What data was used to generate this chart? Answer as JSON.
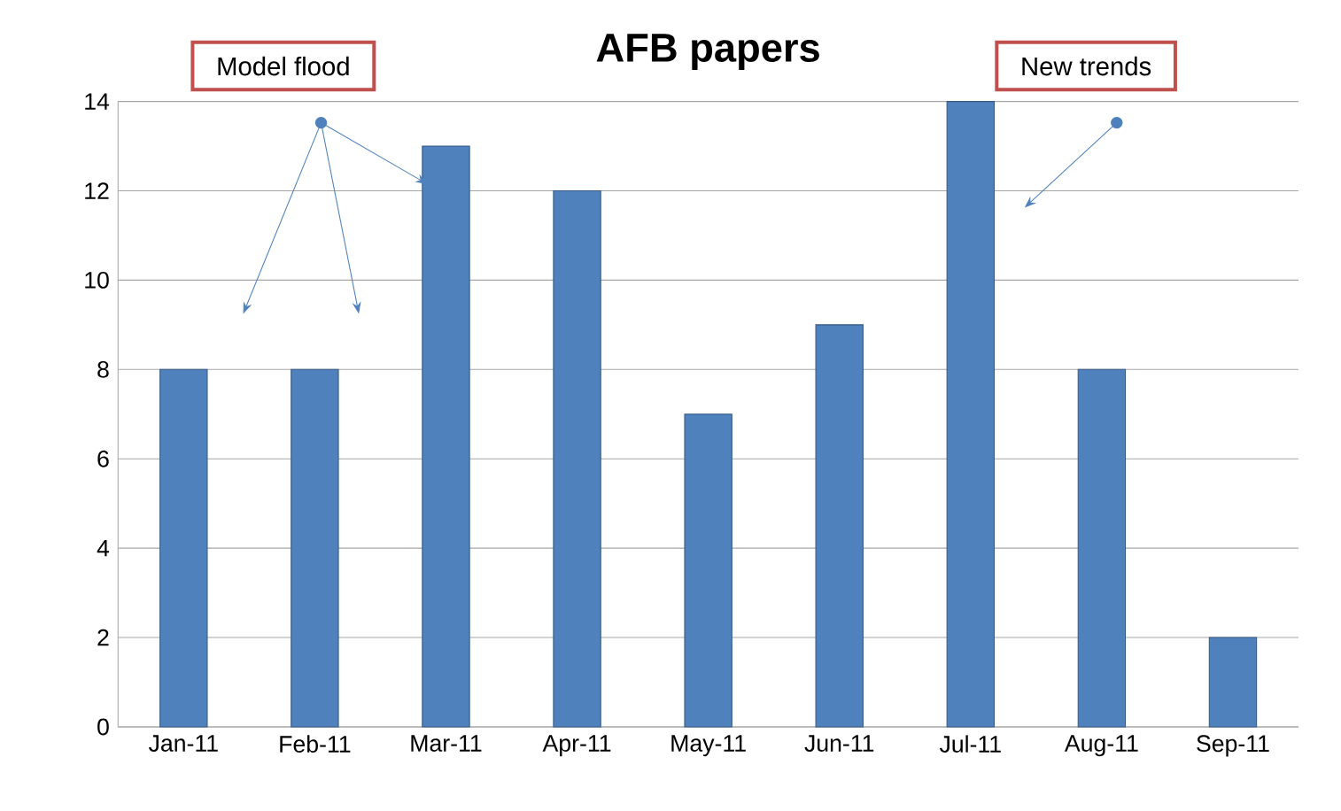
{
  "chart_data": {
    "type": "bar",
    "title": "AFB papers",
    "categories": [
      "Jan-11",
      "Feb-11",
      "Mar-11",
      "Apr-11",
      "May-11",
      "Jun-11",
      "Jul-11",
      "Aug-11",
      "Sep-11"
    ],
    "values": [
      8,
      8,
      13,
      12,
      7,
      9,
      14,
      8,
      2
    ],
    "color": "#4f81bd",
    "ylim": [
      0,
      14
    ],
    "yticks": [
      0,
      2,
      4,
      6,
      8,
      10,
      12,
      14
    ],
    "grid": "y",
    "annotations": [
      "Model flood",
      "New trends"
    ]
  }
}
